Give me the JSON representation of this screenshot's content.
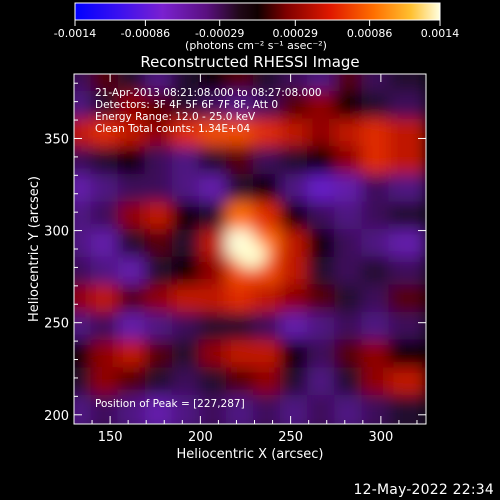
{
  "chart_data": {
    "type": "heatmap",
    "title": "Reconstructed RHESSI Image",
    "xlabel": "Heliocentric X (arcsec)",
    "ylabel": "Heliocentric Y (arcsec)",
    "xlim": [
      130,
      325
    ],
    "ylim": [
      195,
      385
    ],
    "x_ticks": [
      150,
      200,
      250,
      300
    ],
    "y_ticks": [
      200,
      250,
      300,
      350
    ],
    "annotations": [
      "21-Apr-2013 08:21:08.000 to 08:27:08.000",
      "Detectors: 3F 4F 5F 6F 7F 8F, Att 0",
      "Energy Range: 12.0 - 25.0 keV",
      "Clean     Total counts: 1.34E+04"
    ],
    "peak_label": "Position of Peak = [227,287]",
    "peak_position": [
      227,
      287
    ],
    "colorbar": {
      "ticks": [
        "-0.0014",
        "-0.00086",
        "-0.00029",
        "0.00029",
        "0.00086",
        "0.0014"
      ],
      "tick_values": [
        -0.0014,
        -0.00086,
        -0.00029,
        0.00029,
        0.00086,
        0.0014
      ],
      "range": [
        -0.0014,
        0.0014
      ],
      "unit": "(photons cm⁻² s⁻¹ asec⁻²)"
    },
    "heatmap_grid": {
      "x": [
        135,
        150,
        165,
        180,
        195,
        210,
        225,
        240,
        255,
        270,
        285,
        300,
        315
      ],
      "y": [
        380,
        365,
        350,
        335,
        320,
        305,
        290,
        275,
        260,
        245,
        230,
        215,
        200
      ],
      "values": [
        [
          -0.2,
          0.1,
          -0.1,
          -0.3,
          -0.1,
          0.0,
          0.1,
          -0.1,
          -0.2,
          -0.3,
          0.1,
          -0.2,
          -0.1
        ],
        [
          -0.3,
          -0.1,
          0.2,
          0.1,
          -0.1,
          -0.2,
          -0.3,
          -0.2,
          0.1,
          0.2,
          0.0,
          -0.1,
          -0.2
        ],
        [
          0.3,
          0.4,
          0.3,
          0.2,
          0.4,
          0.5,
          0.5,
          0.4,
          0.3,
          0.2,
          0.3,
          0.4,
          0.3
        ],
        [
          -0.2,
          -0.1,
          0.0,
          -0.2,
          -0.3,
          -0.1,
          0.1,
          -0.2,
          -0.1,
          0.0,
          0.2,
          0.4,
          0.3
        ],
        [
          -0.4,
          -0.3,
          -0.2,
          -0.2,
          -0.3,
          -0.4,
          -0.1,
          0.0,
          -0.3,
          -0.5,
          -0.4,
          -0.2,
          -0.3
        ],
        [
          -0.3,
          -0.2,
          0.2,
          0.3,
          0.0,
          -0.1,
          0.6,
          0.4,
          0.0,
          -0.2,
          -0.3,
          -0.2,
          -0.1
        ],
        [
          -0.3,
          -0.4,
          -0.1,
          0.1,
          -0.1,
          0.3,
          1.0,
          0.6,
          0.3,
          0.0,
          -0.2,
          -0.3,
          -0.4
        ],
        [
          -0.2,
          -0.3,
          -0.4,
          -0.1,
          0.0,
          0.2,
          0.5,
          0.5,
          0.3,
          -0.1,
          -0.2,
          -0.1,
          -0.2
        ],
        [
          0.2,
          0.3,
          0.1,
          0.2,
          0.3,
          0.3,
          0.4,
          0.3,
          0.2,
          0.1,
          -0.1,
          -0.2,
          0.1
        ],
        [
          -0.3,
          -0.2,
          -0.4,
          -0.3,
          -0.2,
          -0.1,
          -0.1,
          -0.2,
          -0.4,
          -0.3,
          -0.2,
          -0.3,
          -0.2
        ],
        [
          0.0,
          0.2,
          0.3,
          0.1,
          -0.1,
          0.2,
          0.3,
          0.3,
          0.0,
          -0.2,
          0.1,
          0.2,
          0.0
        ],
        [
          -0.1,
          0.2,
          0.1,
          -0.1,
          -0.2,
          -0.1,
          0.1,
          0.2,
          -0.1,
          -0.3,
          -0.1,
          0.2,
          0.3
        ],
        [
          -0.3,
          -0.2,
          -0.3,
          -0.4,
          -0.3,
          -0.2,
          -0.3,
          -0.2,
          -0.3,
          -0.2,
          -0.3,
          -0.2,
          -0.1
        ]
      ]
    }
  },
  "footer": {
    "timestamp": "12-May-2022 22:34"
  },
  "colors": {
    "background": "#000000",
    "foreground": "#ffffff",
    "colormap": [
      "#0000ff",
      "#4400ee",
      "#7a10c8",
      "#3a1050",
      "#1a0010",
      "#7a0000",
      "#cc1000",
      "#ff5a00",
      "#ffb000",
      "#ffffc0"
    ]
  }
}
